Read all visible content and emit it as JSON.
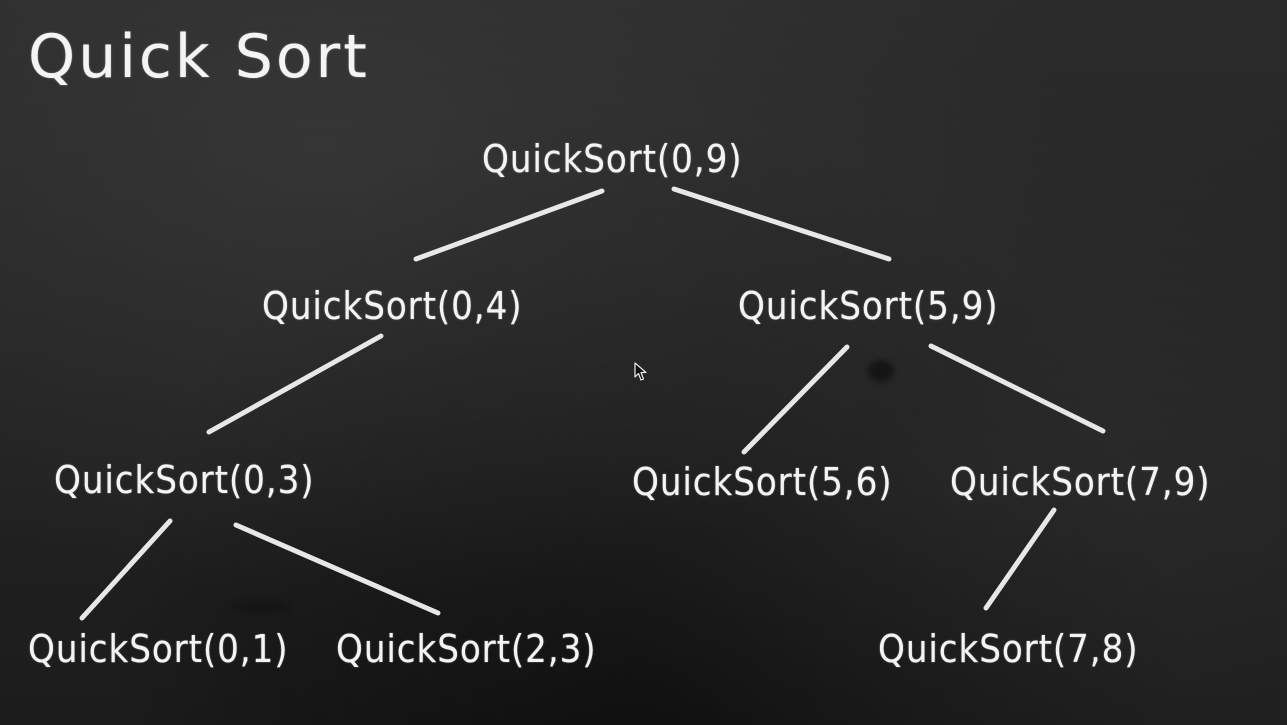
{
  "title": "Quick Sort",
  "nodes": [
    {
      "id": "n09",
      "label": "QuickSort(0,9)"
    },
    {
      "id": "n04",
      "label": "QuickSort(0,4)"
    },
    {
      "id": "n59",
      "label": "QuickSort(5,9)"
    },
    {
      "id": "n03",
      "label": "QuickSort(0,3)"
    },
    {
      "id": "n56",
      "label": "QuickSort(5,6)"
    },
    {
      "id": "n79",
      "label": "QuickSort(7,9)"
    },
    {
      "id": "n01",
      "label": "QuickSort(0,1)"
    },
    {
      "id": "n23",
      "label": "QuickSort(2,3)"
    },
    {
      "id": "n78",
      "label": "QuickSort(7,8)"
    }
  ],
  "edges": [
    {
      "from": "QuickSort(0,9)",
      "to": "QuickSort(0,4)"
    },
    {
      "from": "QuickSort(0,9)",
      "to": "QuickSort(5,9)"
    },
    {
      "from": "QuickSort(0,4)",
      "to": "QuickSort(0,3)"
    },
    {
      "from": "QuickSort(5,9)",
      "to": "QuickSort(5,6)"
    },
    {
      "from": "QuickSort(5,9)",
      "to": "QuickSort(7,9)"
    },
    {
      "from": "QuickSort(0,3)",
      "to": "QuickSort(0,1)"
    },
    {
      "from": "QuickSort(0,3)",
      "to": "QuickSort(2,3)"
    },
    {
      "from": "QuickSort(7,9)",
      "to": "QuickSort(7,8)"
    }
  ],
  "colors": {
    "board": "#242424",
    "chalk": "#f4f4f4"
  },
  "icons": {
    "cursor": "mouse-pointer-icon"
  }
}
